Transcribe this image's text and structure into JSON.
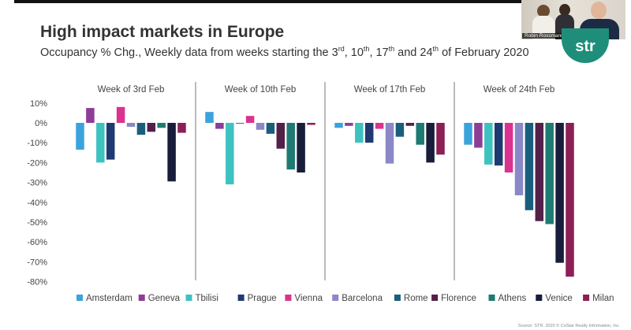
{
  "header": {
    "title": "High impact markets in Europe",
    "subtitle_pre": "Occupancy % Chg., Weekly data from weeks starting the 3",
    "sup1": "rd",
    "sep1": ", 10",
    "sup2": "th",
    "sep2": ", 17",
    "sup3": "th",
    "sep3": " and 24",
    "sup4": "th",
    "subtitle_post": " of February 2020"
  },
  "video": {
    "presenter_name": "Robin Rossmann"
  },
  "logo": {
    "text": "str"
  },
  "footer": {
    "source": "Source: STR. 2020 © CoStar Realty Information, Inc."
  },
  "chart_data": {
    "type": "bar",
    "title": "High impact markets in Europe",
    "ylabel": "Occupancy % Chg.",
    "ylim": [
      -80,
      10
    ],
    "yticks": [
      10,
      0,
      -10,
      -20,
      -30,
      -40,
      -50,
      -60,
      -70,
      -80
    ],
    "panels": [
      "Week of 3rd Feb",
      "Week of 10th Feb",
      "Week of 17th Feb",
      "Week of 24th Feb"
    ],
    "legend_position": "bottom",
    "series": [
      {
        "name": "Amsterdam",
        "color": "#3ba3dc",
        "values": [
          -13.5,
          5.5,
          -2.5,
          -11
        ]
      },
      {
        "name": "Geneva",
        "color": "#8e3d97",
        "values": [
          7.5,
          -3,
          -1.5,
          -12.5
        ]
      },
      {
        "name": "Tbilisi",
        "color": "#3ec2c0",
        "values": [
          -20,
          -31,
          -10,
          -21
        ]
      },
      {
        "name": "Prague",
        "color": "#1f3a70",
        "values": [
          -18.5,
          0,
          -10,
          -21.5
        ]
      },
      {
        "name": "Vienna",
        "color": "#d9338f",
        "values": [
          8,
          3.5,
          -3,
          -25
        ]
      },
      {
        "name": "Barcelona",
        "color": "#8b88c8",
        "values": [
          -2,
          -3.5,
          -20.5,
          -36.5
        ]
      },
      {
        "name": "Rome",
        "color": "#1a5e7d",
        "values": [
          -6,
          -5.5,
          -7,
          -44
        ]
      },
      {
        "name": "Florence",
        "color": "#53204a",
        "values": [
          -4.5,
          -13,
          -1.5,
          -49.5
        ]
      },
      {
        "name": "Athens",
        "color": "#1e7a72",
        "values": [
          -2.5,
          -23.5,
          -11,
          -51
        ]
      },
      {
        "name": "Venice",
        "color": "#171d3a",
        "values": [
          -29.5,
          -25,
          -20,
          -70.5
        ]
      },
      {
        "name": "Milan",
        "color": "#8c1f55",
        "values": [
          -5,
          -1,
          -16,
          -77.5
        ]
      }
    ]
  }
}
